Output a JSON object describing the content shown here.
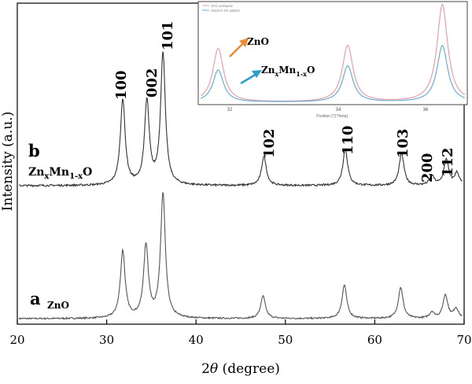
{
  "chart_data": {
    "type": "line",
    "xlabel": "2θ (degree)",
    "ylabel": "Intensity (a.u.)",
    "xlim": [
      20,
      70
    ],
    "x_ticks": [
      20,
      30,
      40,
      50,
      60,
      70
    ],
    "grid": false,
    "series": [
      {
        "name": "ZnO",
        "letter": "a",
        "color": "#555555",
        "peaks": [
          {
            "x": 31.8,
            "y": 0.54
          },
          {
            "x": 34.4,
            "y": 0.58
          },
          {
            "x": 36.3,
            "y": 1.0
          },
          {
            "x": 47.5,
            "y": 0.18
          },
          {
            "x": 56.6,
            "y": 0.27
          },
          {
            "x": 62.9,
            "y": 0.25
          },
          {
            "x": 66.4,
            "y": 0.05
          },
          {
            "x": 67.9,
            "y": 0.19
          },
          {
            "x": 69.1,
            "y": 0.08
          }
        ]
      },
      {
        "name": "ZnxMn1-xO",
        "letter": "b",
        "color": "#333333",
        "peaks": [
          {
            "x": 31.8,
            "y": 0.56
          },
          {
            "x": 34.5,
            "y": 0.54
          },
          {
            "x": 36.3,
            "y": 0.86
          },
          {
            "x": 47.6,
            "y": 0.19
          },
          {
            "x": 56.7,
            "y": 0.24
          },
          {
            "x": 63.0,
            "y": 0.21
          },
          {
            "x": 66.4,
            "y": 0.06
          },
          {
            "x": 68.0,
            "y": 0.17
          },
          {
            "x": 69.2,
            "y": 0.08
          }
        ]
      }
    ],
    "peak_labels": [
      "100",
      "002",
      "101",
      "102",
      "110",
      "103",
      "200",
      "112"
    ],
    "inset": {
      "x_ticks": [
        "32",
        "34",
        "36"
      ],
      "xlabel": "Position [°2Theta]",
      "legend": [
        "ZnO undoped",
        "ZnMnO 4% added"
      ],
      "labels": [
        "ZnO",
        "ZnxMn1-xO"
      ],
      "series_colors": [
        "#e8a0a8",
        "#6aaed6"
      ],
      "arrow_colors": [
        "#f08a30",
        "#2aa0c8"
      ]
    }
  }
}
